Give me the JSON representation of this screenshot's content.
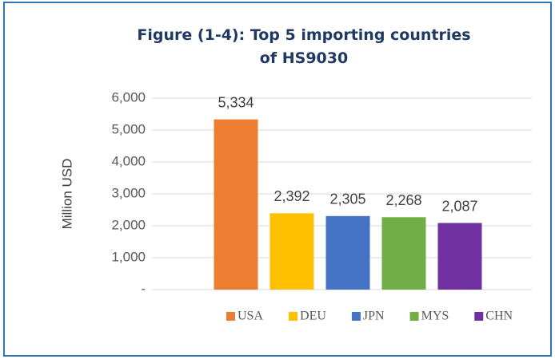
{
  "chart_data": {
    "type": "bar",
    "title": "Figure (1-4): Top 5 importing countries of HS9030",
    "y_label": "Million USD",
    "categories": [
      "USA",
      "DEU",
      "JPN",
      "MYS",
      "CHN"
    ],
    "values": [
      5334,
      2392,
      2305,
      2268,
      2087
    ],
    "value_labels": [
      "5,334",
      "2,392",
      "2,305",
      "2,268",
      "2,087"
    ],
    "colors": [
      "#ED7D31",
      "#FFC000",
      "#4472C4",
      "#70AD47",
      "#7030A0"
    ],
    "ylim": [
      0,
      6000
    ],
    "yticks": [
      {
        "value": 0,
        "label": "-"
      },
      {
        "value": 1000,
        "label": "1,000"
      },
      {
        "value": 2000,
        "label": "2,000"
      },
      {
        "value": 3000,
        "label": "3,000"
      },
      {
        "value": 4000,
        "label": "4,000"
      },
      {
        "value": 5000,
        "label": "5,000"
      },
      {
        "value": 6000,
        "label": "6,000"
      }
    ],
    "grid": true,
    "legend": "bottom"
  }
}
